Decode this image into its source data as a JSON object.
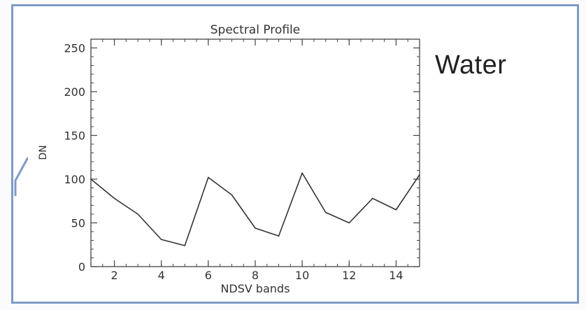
{
  "side_label": "Water",
  "colors": {
    "frame": "#7f9ac4",
    "line": "#333333",
    "axis": "#444444"
  },
  "chart_data": {
    "type": "line",
    "title": "Spectral Profile",
    "xlabel": "NDSV bands",
    "ylabel": "DN",
    "xlim": [
      1,
      15
    ],
    "ylim": [
      0,
      260
    ],
    "xticks": [
      2,
      4,
      6,
      8,
      10,
      12,
      14
    ],
    "yticks": [
      0,
      50,
      100,
      150,
      200,
      250
    ],
    "x": [
      1,
      2,
      3,
      4,
      5,
      6,
      7,
      8,
      9,
      10,
      11,
      12,
      13,
      14,
      15
    ],
    "series": [
      {
        "values": [
          100,
          78,
          60,
          31,
          24,
          102,
          82,
          44,
          35,
          107,
          62,
          50,
          78,
          65,
          105
        ]
      }
    ]
  }
}
